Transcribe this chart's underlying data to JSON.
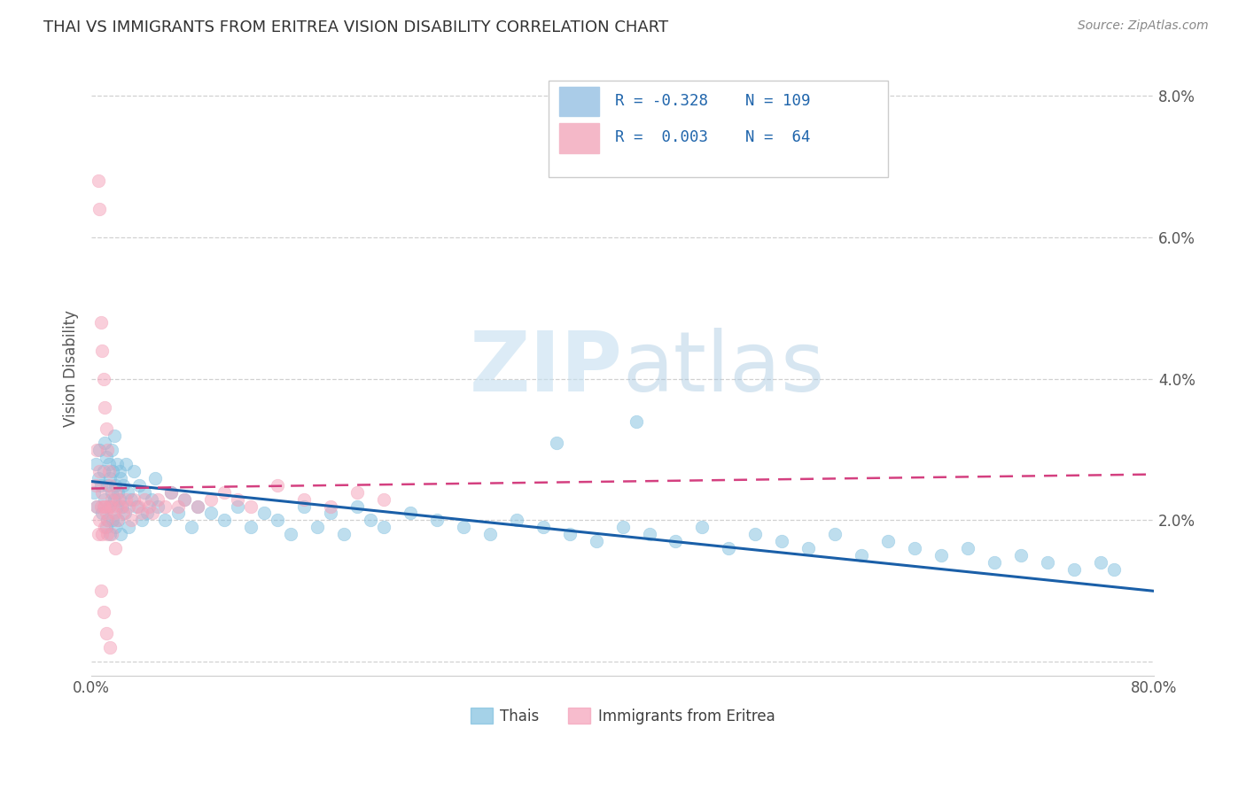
{
  "title": "THAI VS IMMIGRANTS FROM ERITREA VISION DISABILITY CORRELATION CHART",
  "source": "Source: ZipAtlas.com",
  "ylabel": "Vision Disability",
  "watermark": "ZIPatlas",
  "color1": "#7fbfdf",
  "color2": "#f4a0b8",
  "line_color1": "#1a5fa8",
  "line_color2": "#d44080",
  "label1": "Thais",
  "label2": "Immigrants from Eritrea",
  "background_color": "#ffffff",
  "grid_color": "#cccccc",
  "title_color": "#333333",
  "title_fontsize": 13,
  "xmin": 0.0,
  "xmax": 0.8,
  "ymin": -0.002,
  "ymax": 0.085,
  "thais_x": [
    0.002,
    0.003,
    0.004,
    0.005,
    0.006,
    0.007,
    0.008,
    0.009,
    0.01,
    0.01,
    0.011,
    0.011,
    0.012,
    0.012,
    0.013,
    0.013,
    0.014,
    0.014,
    0.015,
    0.015,
    0.016,
    0.016,
    0.017,
    0.017,
    0.018,
    0.018,
    0.019,
    0.019,
    0.02,
    0.02,
    0.021,
    0.021,
    0.022,
    0.022,
    0.023,
    0.024,
    0.025,
    0.026,
    0.027,
    0.028,
    0.03,
    0.032,
    0.034,
    0.036,
    0.038,
    0.04,
    0.042,
    0.045,
    0.048,
    0.05,
    0.055,
    0.06,
    0.065,
    0.07,
    0.075,
    0.08,
    0.09,
    0.1,
    0.11,
    0.12,
    0.13,
    0.14,
    0.15,
    0.16,
    0.17,
    0.18,
    0.19,
    0.2,
    0.21,
    0.22,
    0.24,
    0.26,
    0.28,
    0.3,
    0.32,
    0.34,
    0.36,
    0.38,
    0.4,
    0.42,
    0.44,
    0.46,
    0.48,
    0.5,
    0.52,
    0.54,
    0.56,
    0.58,
    0.6,
    0.62,
    0.64,
    0.66,
    0.68,
    0.7,
    0.72,
    0.74,
    0.76,
    0.77,
    0.35,
    0.41
  ],
  "thais_y": [
    0.024,
    0.028,
    0.022,
    0.026,
    0.03,
    0.025,
    0.021,
    0.027,
    0.023,
    0.031,
    0.019,
    0.029,
    0.025,
    0.02,
    0.028,
    0.022,
    0.026,
    0.018,
    0.024,
    0.03,
    0.02,
    0.027,
    0.023,
    0.032,
    0.019,
    0.025,
    0.022,
    0.028,
    0.024,
    0.02,
    0.027,
    0.023,
    0.026,
    0.018,
    0.022,
    0.025,
    0.021,
    0.028,
    0.024,
    0.019,
    0.023,
    0.027,
    0.022,
    0.025,
    0.02,
    0.024,
    0.021,
    0.023,
    0.026,
    0.022,
    0.02,
    0.024,
    0.021,
    0.023,
    0.019,
    0.022,
    0.021,
    0.02,
    0.022,
    0.019,
    0.021,
    0.02,
    0.018,
    0.022,
    0.019,
    0.021,
    0.018,
    0.022,
    0.02,
    0.019,
    0.021,
    0.02,
    0.019,
    0.018,
    0.02,
    0.019,
    0.018,
    0.017,
    0.019,
    0.018,
    0.017,
    0.019,
    0.016,
    0.018,
    0.017,
    0.016,
    0.018,
    0.015,
    0.017,
    0.016,
    0.015,
    0.016,
    0.014,
    0.015,
    0.014,
    0.013,
    0.014,
    0.013,
    0.031,
    0.034
  ],
  "eritrea_x": [
    0.003,
    0.004,
    0.005,
    0.005,
    0.006,
    0.006,
    0.007,
    0.007,
    0.008,
    0.008,
    0.009,
    0.009,
    0.01,
    0.01,
    0.011,
    0.011,
    0.012,
    0.012,
    0.013,
    0.013,
    0.014,
    0.015,
    0.016,
    0.017,
    0.018,
    0.019,
    0.02,
    0.022,
    0.024,
    0.026,
    0.028,
    0.03,
    0.032,
    0.035,
    0.038,
    0.04,
    0.043,
    0.046,
    0.05,
    0.055,
    0.06,
    0.065,
    0.07,
    0.08,
    0.09,
    0.1,
    0.11,
    0.12,
    0.14,
    0.16,
    0.18,
    0.2,
    0.22,
    0.004,
    0.006,
    0.008,
    0.01,
    0.012,
    0.015,
    0.018,
    0.007,
    0.009,
    0.011,
    0.014
  ],
  "eritrea_y": [
    0.025,
    0.022,
    0.068,
    0.018,
    0.064,
    0.02,
    0.048,
    0.022,
    0.044,
    0.018,
    0.04,
    0.022,
    0.036,
    0.019,
    0.033,
    0.021,
    0.03,
    0.018,
    0.027,
    0.022,
    0.025,
    0.023,
    0.022,
    0.021,
    0.024,
    0.02,
    0.023,
    0.022,
    0.021,
    0.023,
    0.022,
    0.02,
    0.023,
    0.022,
    0.021,
    0.023,
    0.022,
    0.021,
    0.023,
    0.022,
    0.024,
    0.022,
    0.023,
    0.022,
    0.023,
    0.024,
    0.023,
    0.022,
    0.025,
    0.023,
    0.022,
    0.024,
    0.023,
    0.03,
    0.027,
    0.024,
    0.022,
    0.02,
    0.018,
    0.016,
    0.01,
    0.007,
    0.004,
    0.002
  ]
}
